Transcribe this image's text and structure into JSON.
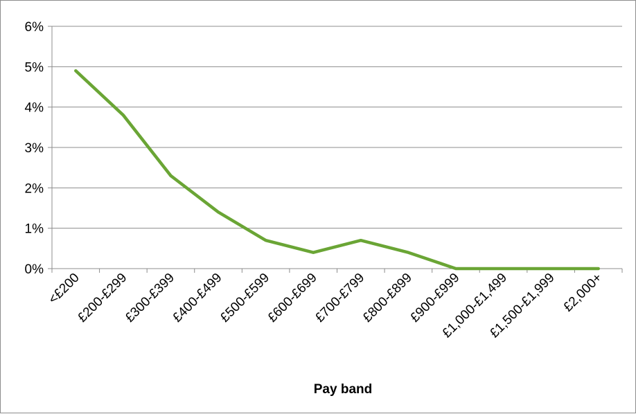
{
  "chart_data": {
    "type": "line",
    "title": "",
    "xlabel": "Pay band",
    "ylabel": "",
    "categories": [
      "<£200",
      "£200-£299",
      "£300-£399",
      "£400-£499",
      "£500-£599",
      "£600-£699",
      "£700-£799",
      "£800-£899",
      "£900-£999",
      "£1,000-£1,499",
      "£1,500-£1,999",
      "£2,000+"
    ],
    "series": [
      {
        "values": [
          4.9,
          3.8,
          2.3,
          1.4,
          0.7,
          0.4,
          0.7,
          0.4,
          0.0,
          0.0,
          0.0,
          0.0
        ]
      }
    ],
    "ylim": [
      0,
      6
    ],
    "yticks": [
      0,
      1,
      2,
      3,
      4,
      5,
      6
    ],
    "ytick_labels": [
      "0%",
      "1%",
      "2%",
      "3%",
      "4%",
      "5%",
      "6%"
    ],
    "grid": true,
    "legend": "none",
    "colors": {
      "line": "#6aa535",
      "grid": "#8c8c8c",
      "axis": "#8c8c8c"
    }
  }
}
